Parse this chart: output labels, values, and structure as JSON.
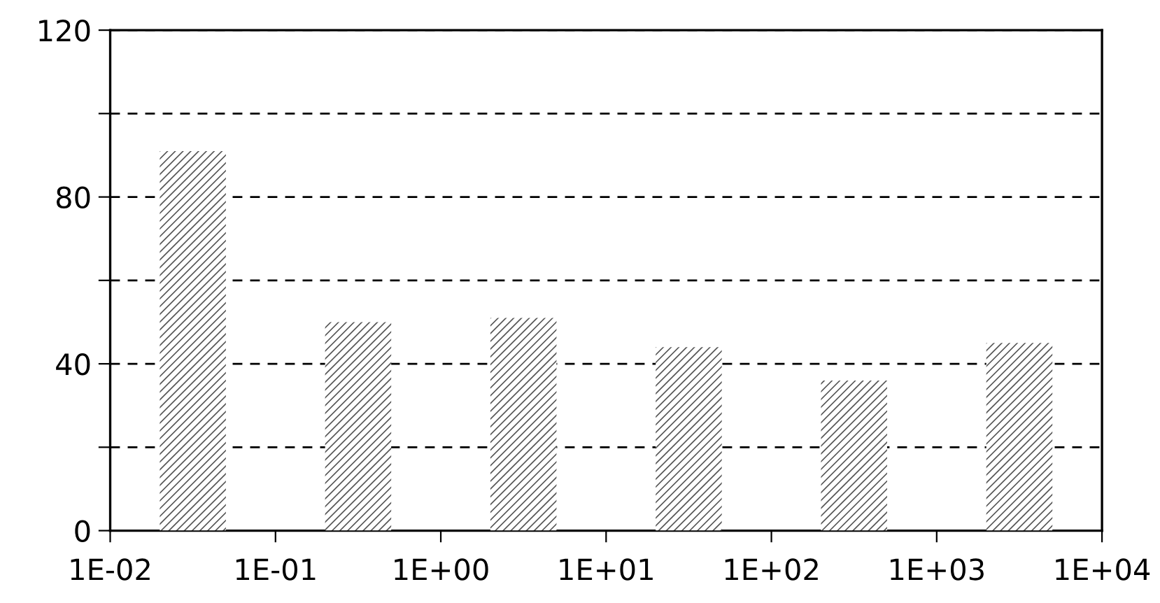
{
  "chart_data": {
    "type": "histogram",
    "log": "x",
    "bins": [
      0.01,
      0.1,
      1,
      10,
      100,
      1000,
      10000
    ],
    "values": [
      91,
      50,
      51,
      44,
      36,
      45
    ],
    "color": "#555555",
    "xlim": [
      0.01,
      10000
    ],
    "xticks": [
      {
        "value": 0.01,
        "label": "1E-02"
      },
      {
        "value": 0.1,
        "label": "1E-01"
      },
      {
        "value": 1,
        "label": "1E+00"
      },
      {
        "value": 10,
        "label": "1E+01"
      },
      {
        "value": 100,
        "label": "1E+02"
      },
      {
        "value": 1000,
        "label": "1E+03"
      },
      {
        "value": 10000,
        "label": "1E+04"
      }
    ],
    "ylim": [
      0,
      120
    ],
    "yticks": [
      0,
      {
        "value": 20,
        "label": null
      },
      40,
      {
        "value": 60,
        "label": null
      },
      80,
      {
        "value": 100,
        "label": null
      },
      120
    ],
    "grid": "y",
    "line_style": "dashed"
  }
}
